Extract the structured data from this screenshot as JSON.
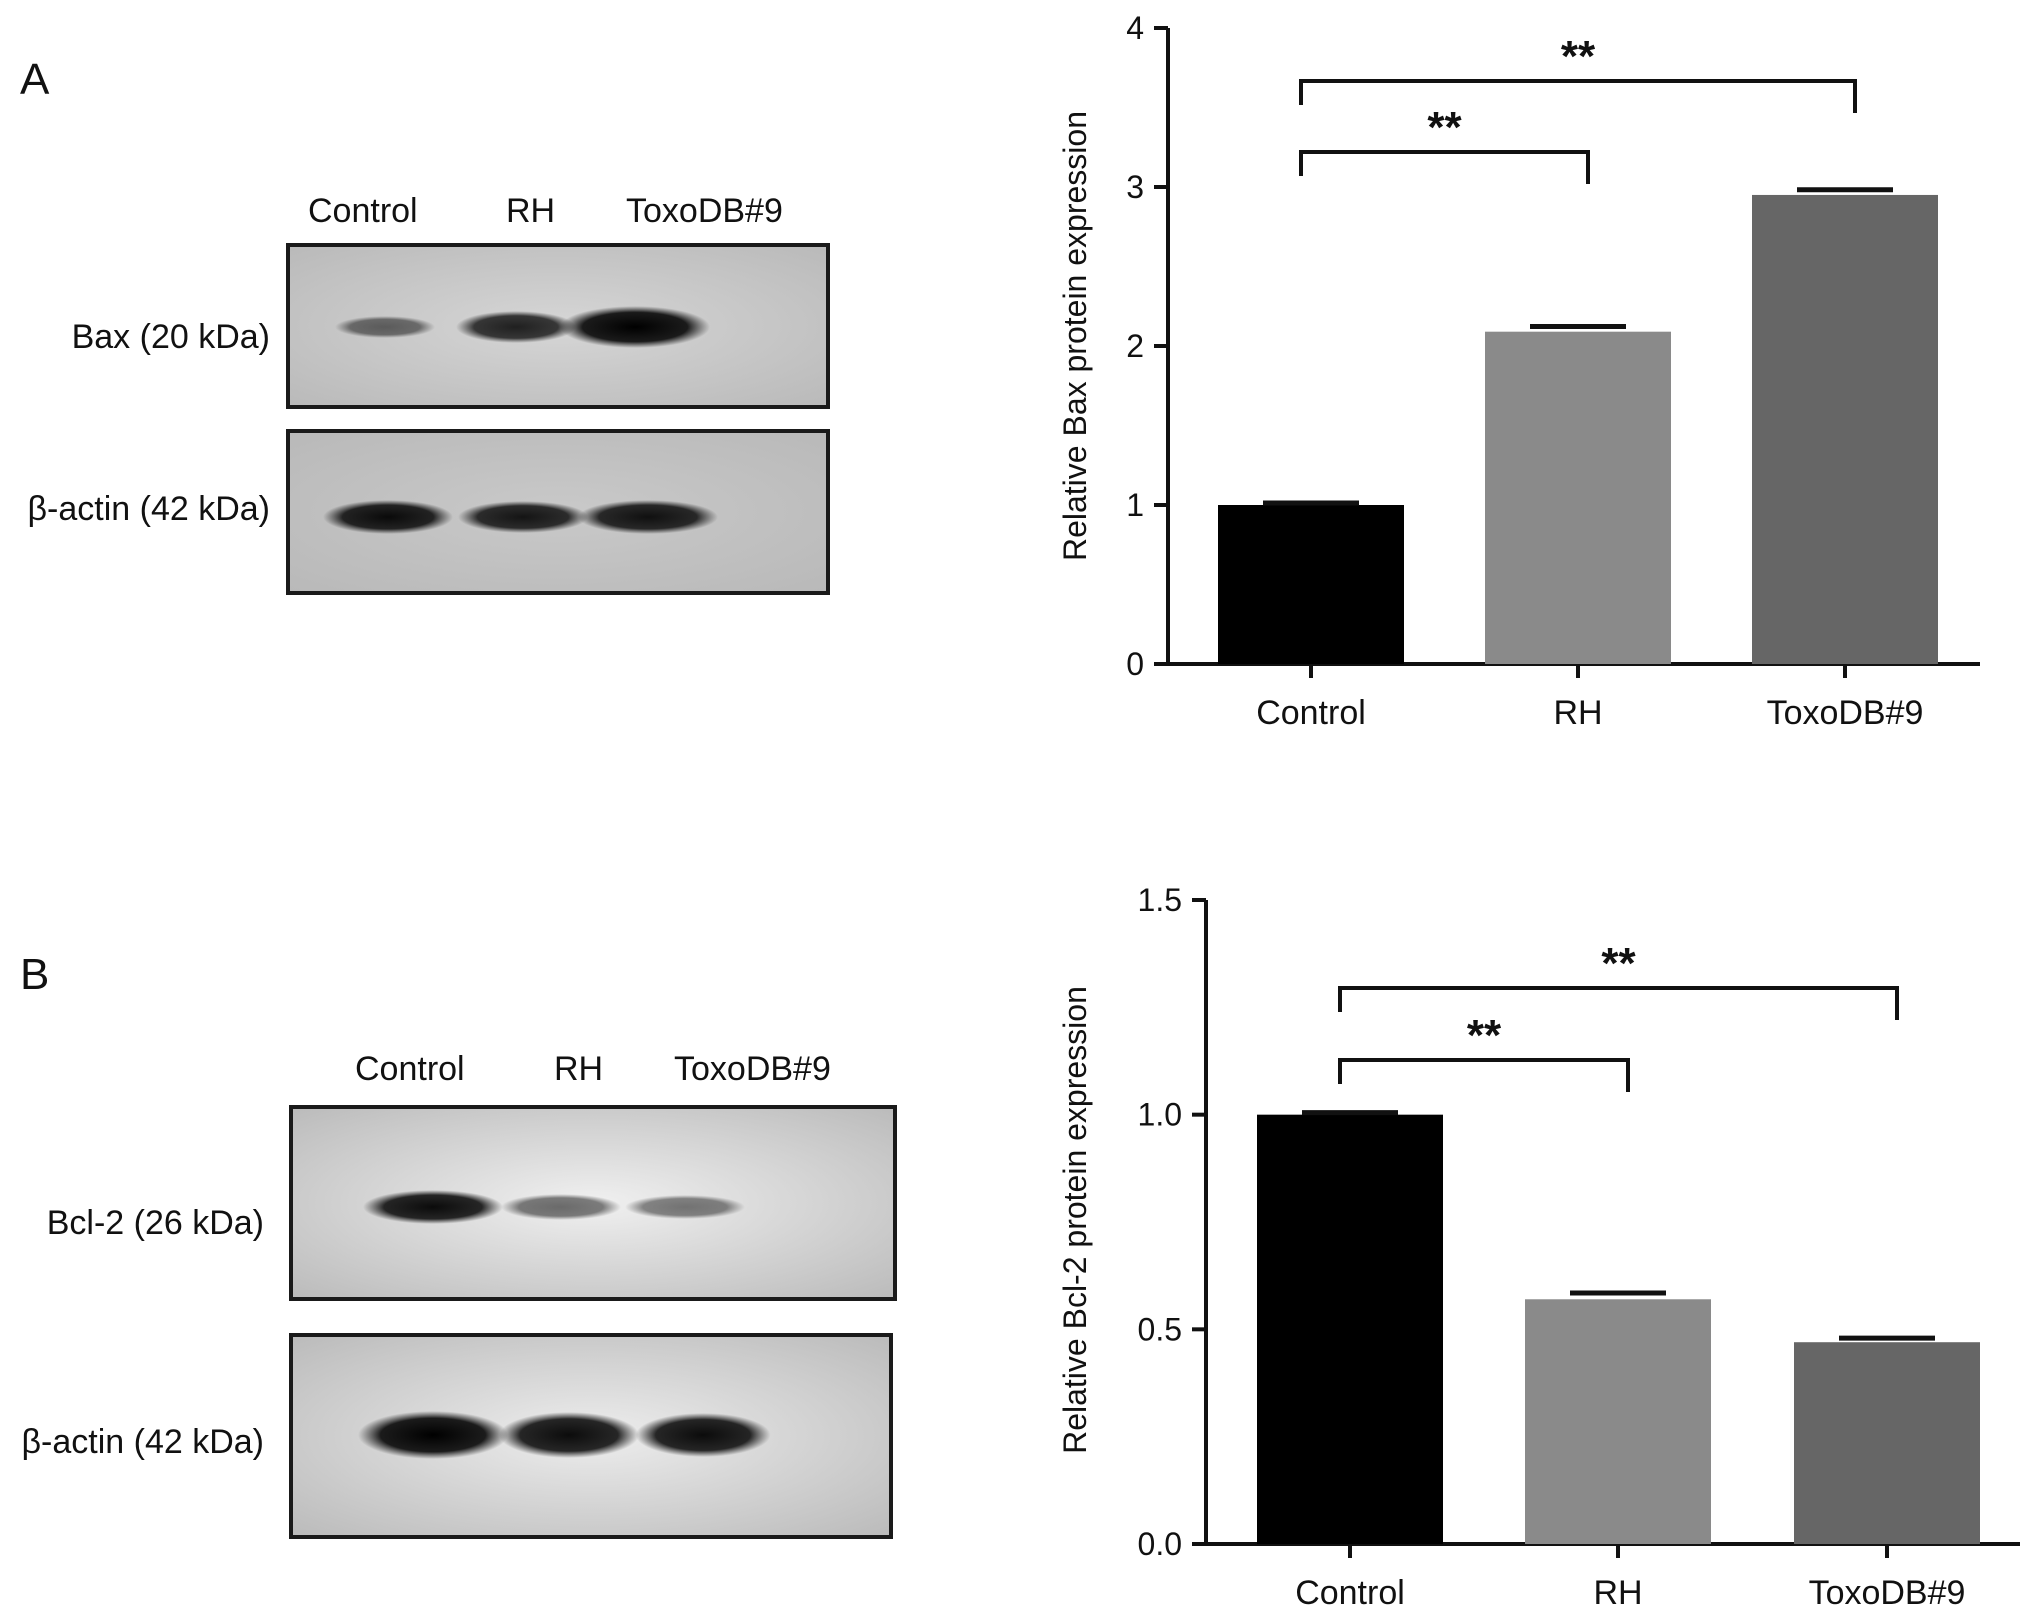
{
  "panels": [
    {
      "letter": "A",
      "lanes": [
        "Control",
        "RH",
        "ToxoDB#9"
      ],
      "blots": [
        {
          "label": "Bax (20 kDa)",
          "intensities": [
            0.55,
            0.85,
            1.0
          ]
        },
        {
          "label": "β-actin (42 kDa)",
          "intensities": [
            0.95,
            0.9,
            0.92
          ]
        }
      ]
    },
    {
      "letter": "B",
      "lanes": [
        "Control",
        "RH",
        "ToxoDB#9"
      ],
      "blots": [
        {
          "label": "Bcl-2 (26 kDa)",
          "intensities": [
            0.95,
            0.55,
            0.5
          ]
        },
        {
          "label": "β-actin (42 kDa)",
          "intensities": [
            1.0,
            0.95,
            0.95
          ]
        }
      ]
    }
  ],
  "chart_data": [
    {
      "type": "bar",
      "categories": [
        "Control",
        "RH",
        "ToxoDB#9"
      ],
      "values": [
        1.0,
        2.09,
        2.95
      ],
      "errors": [
        0.0,
        0.02,
        0.02
      ],
      "ylabel": "Relative Bax protein expression",
      "xlabel": "",
      "ylim": [
        0,
        4
      ],
      "yticks": [
        "0",
        "1",
        "2",
        "3",
        "4"
      ],
      "colors": [
        "#000000",
        "#8a8a8a",
        "#666666"
      ],
      "significance": [
        {
          "from": "Control",
          "to": "RH",
          "label": "**"
        },
        {
          "from": "Control",
          "to": "ToxoDB#9",
          "label": "**"
        }
      ]
    },
    {
      "type": "bar",
      "categories": [
        "Control",
        "RH",
        "ToxoDB#9"
      ],
      "values": [
        1.0,
        0.57,
        0.47
      ],
      "errors": [
        0.0,
        0.01,
        0.005
      ],
      "ylabel": "Relative Bcl-2 protein expression",
      "xlabel": "",
      "ylim": [
        0,
        1.5
      ],
      "yticks": [
        "0.0",
        "0.5",
        "1.0",
        "1.5"
      ],
      "colors": [
        "#000000",
        "#8a8a8a",
        "#666666"
      ],
      "significance": [
        {
          "from": "Control",
          "to": "RH",
          "label": "**"
        },
        {
          "from": "Control",
          "to": "ToxoDB#9",
          "label": "**"
        }
      ]
    }
  ]
}
